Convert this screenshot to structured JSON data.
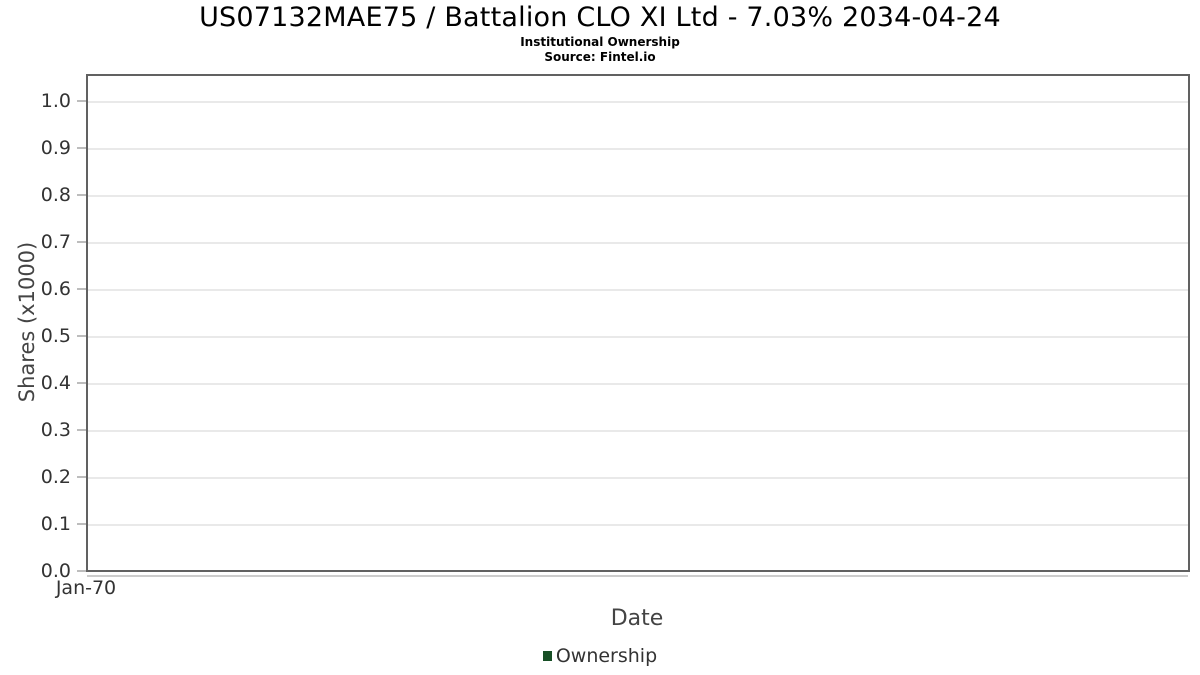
{
  "header": {
    "title": "US07132MAE75 / Battalion CLO XI Ltd - 7.03% 2034-04-24",
    "subtitle": "Institutional Ownership",
    "source": "Source: Fintel.io"
  },
  "chart_data": {
    "type": "line",
    "title": "US07132MAE75 / Battalion CLO XI Ltd - 7.03% 2034-04-24",
    "subtitle": "Institutional Ownership",
    "source": "Source: Fintel.io",
    "xlabel": "Date",
    "ylabel": "Shares (x1000)",
    "ylim": [
      0.0,
      1.0
    ],
    "yticks": [
      "1.0",
      "0.9",
      "0.8",
      "0.7",
      "0.6",
      "0.5",
      "0.4",
      "0.3",
      "0.2",
      "0.1",
      "0.0"
    ],
    "xticks": [
      "Jan-70"
    ],
    "grid": true,
    "series": [
      {
        "name": "Ownership",
        "color": "#174f26",
        "x": [],
        "values": []
      }
    ],
    "legend": {
      "position": "bottom",
      "entries": [
        {
          "label": "Ownership",
          "color": "#174f26"
        }
      ]
    }
  }
}
